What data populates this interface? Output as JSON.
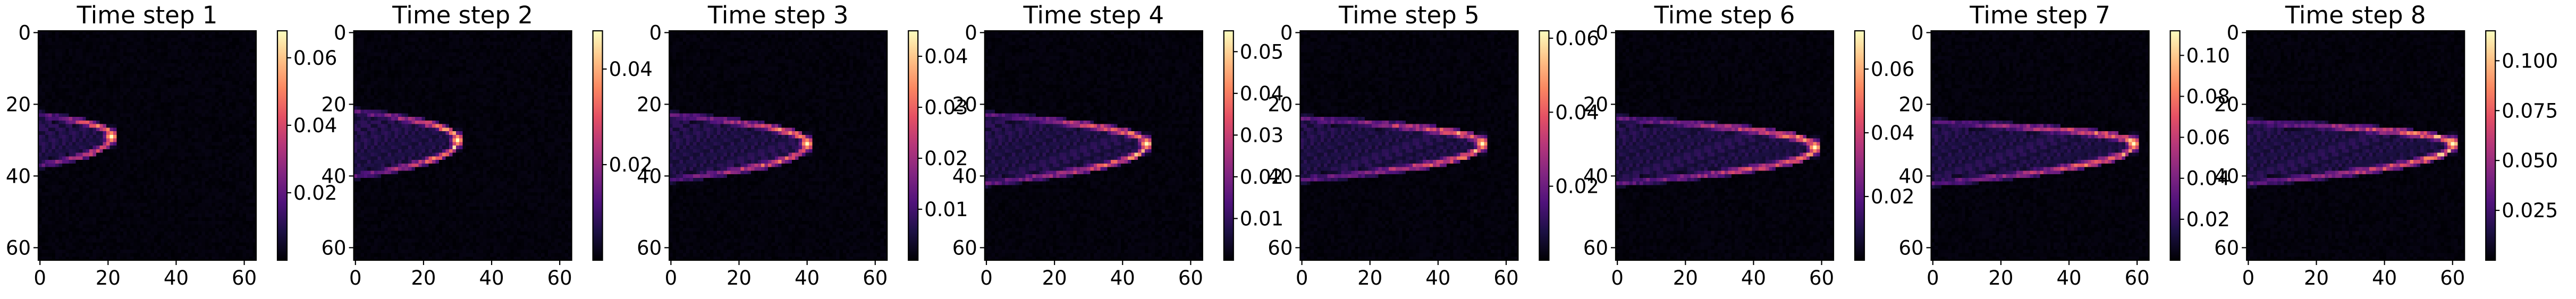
{
  "figure": {
    "grid_size": 64,
    "colormap": "magma",
    "colormap_stops": [
      "#000004",
      "#1c1044",
      "#4f127b",
      "#812581",
      "#b5367a",
      "#e55064",
      "#fb8761",
      "#fec287",
      "#fcfdbf"
    ]
  },
  "chart_data": [
    {
      "type": "heatmap",
      "title": "Time step 1",
      "xlabel": "",
      "ylabel": "",
      "x_ticks": [
        0,
        20,
        40,
        60
      ],
      "y_ticks": [
        0,
        20,
        40,
        60
      ],
      "colorbar": {
        "vmin": 0,
        "vmax": 0.068,
        "ticks": [
          0.02,
          0.04,
          0.06
        ],
        "tick_labels": [
          "0.02",
          "0.04",
          "0.06"
        ]
      },
      "feature": {
        "front_x": 21,
        "center_y": 29,
        "top_y": 23,
        "bottom_y": 37,
        "peak": 0.068
      }
    },
    {
      "type": "heatmap",
      "title": "Time step 2",
      "xlabel": "",
      "ylabel": "",
      "x_ticks": [
        0,
        20,
        40,
        60
      ],
      "y_ticks": [
        0,
        20,
        40,
        60
      ],
      "colorbar": {
        "vmin": 0,
        "vmax": 0.048,
        "ticks": [
          0.02,
          0.04
        ],
        "tick_labels": [
          "0.02",
          "0.04"
        ]
      },
      "feature": {
        "front_x": 30,
        "center_y": 30,
        "top_y": 22,
        "bottom_y": 40,
        "peak": 0.048
      }
    },
    {
      "type": "heatmap",
      "title": "Time step 3",
      "xlabel": "",
      "ylabel": "",
      "x_ticks": [
        0,
        20,
        40,
        60
      ],
      "y_ticks": [
        0,
        20,
        40,
        60
      ],
      "colorbar": {
        "vmin": 0,
        "vmax": 0.045,
        "ticks": [
          0.01,
          0.02,
          0.03,
          0.04
        ],
        "tick_labels": [
          "0.01",
          "0.02",
          "0.03",
          "0.04"
        ]
      },
      "feature": {
        "front_x": 40,
        "center_y": 31,
        "top_y": 23,
        "bottom_y": 41,
        "peak": 0.045
      }
    },
    {
      "type": "heatmap",
      "title": "Time step 4",
      "xlabel": "",
      "ylabel": "",
      "x_ticks": [
        0,
        20,
        40,
        60
      ],
      "y_ticks": [
        0,
        20,
        40,
        60
      ],
      "colorbar": {
        "vmin": 0,
        "vmax": 0.055,
        "ticks": [
          0.01,
          0.02,
          0.03,
          0.04,
          0.05
        ],
        "tick_labels": [
          "0.01",
          "0.02",
          "0.03",
          "0.04",
          "0.05"
        ]
      },
      "feature": {
        "front_x": 47,
        "center_y": 31,
        "top_y": 23,
        "bottom_y": 42,
        "peak": 0.055
      }
    },
    {
      "type": "heatmap",
      "title": "Time step 5",
      "xlabel": "",
      "ylabel": "",
      "x_ticks": [
        0,
        20,
        40,
        60
      ],
      "y_ticks": [
        0,
        20,
        40,
        60
      ],
      "colorbar": {
        "vmin": 0,
        "vmax": 0.062,
        "ticks": [
          0.02,
          0.04,
          0.06
        ],
        "tick_labels": [
          "0.02",
          "0.04",
          "0.06"
        ]
      },
      "feature": {
        "front_x": 53,
        "center_y": 31,
        "top_y": 24,
        "bottom_y": 41,
        "peak": 0.062
      }
    },
    {
      "type": "heatmap",
      "title": "Time step 6",
      "xlabel": "",
      "ylabel": "",
      "x_ticks": [
        0,
        20,
        40,
        60
      ],
      "y_ticks": [
        0,
        20,
        40,
        60
      ],
      "colorbar": {
        "vmin": 0,
        "vmax": 0.072,
        "ticks": [
          0.02,
          0.04,
          0.06
        ],
        "tick_labels": [
          "0.02",
          "0.04",
          "0.06"
        ]
      },
      "feature": {
        "front_x": 58,
        "center_y": 32,
        "top_y": 24,
        "bottom_y": 42,
        "peak": 0.072
      }
    },
    {
      "type": "heatmap",
      "title": "Time step 7",
      "xlabel": "",
      "ylabel": "",
      "x_ticks": [
        0,
        20,
        40,
        60
      ],
      "y_ticks": [
        0,
        20,
        40,
        60
      ],
      "colorbar": {
        "vmin": 0,
        "vmax": 0.112,
        "ticks": [
          0.02,
          0.04,
          0.06,
          0.08,
          0.1
        ],
        "tick_labels": [
          "0.02",
          "0.04",
          "0.06",
          "0.08",
          "0.10"
        ]
      },
      "feature": {
        "front_x": 59,
        "center_y": 31,
        "top_y": 25,
        "bottom_y": 42,
        "peak": 0.112
      }
    },
    {
      "type": "heatmap",
      "title": "Time step 8",
      "xlabel": "",
      "ylabel": "",
      "x_ticks": [
        0,
        20,
        40,
        60
      ],
      "y_ticks": [
        0,
        20,
        40,
        60
      ],
      "colorbar": {
        "vmin": 0,
        "vmax": 0.115,
        "ticks": [
          0.025,
          0.05,
          0.075,
          0.1
        ],
        "tick_labels": [
          "0.025",
          "0.050",
          "0.075",
          "0.100"
        ]
      },
      "feature": {
        "front_x": 60,
        "center_y": 31,
        "top_y": 25,
        "bottom_y": 42,
        "peak": 0.115
      }
    }
  ]
}
